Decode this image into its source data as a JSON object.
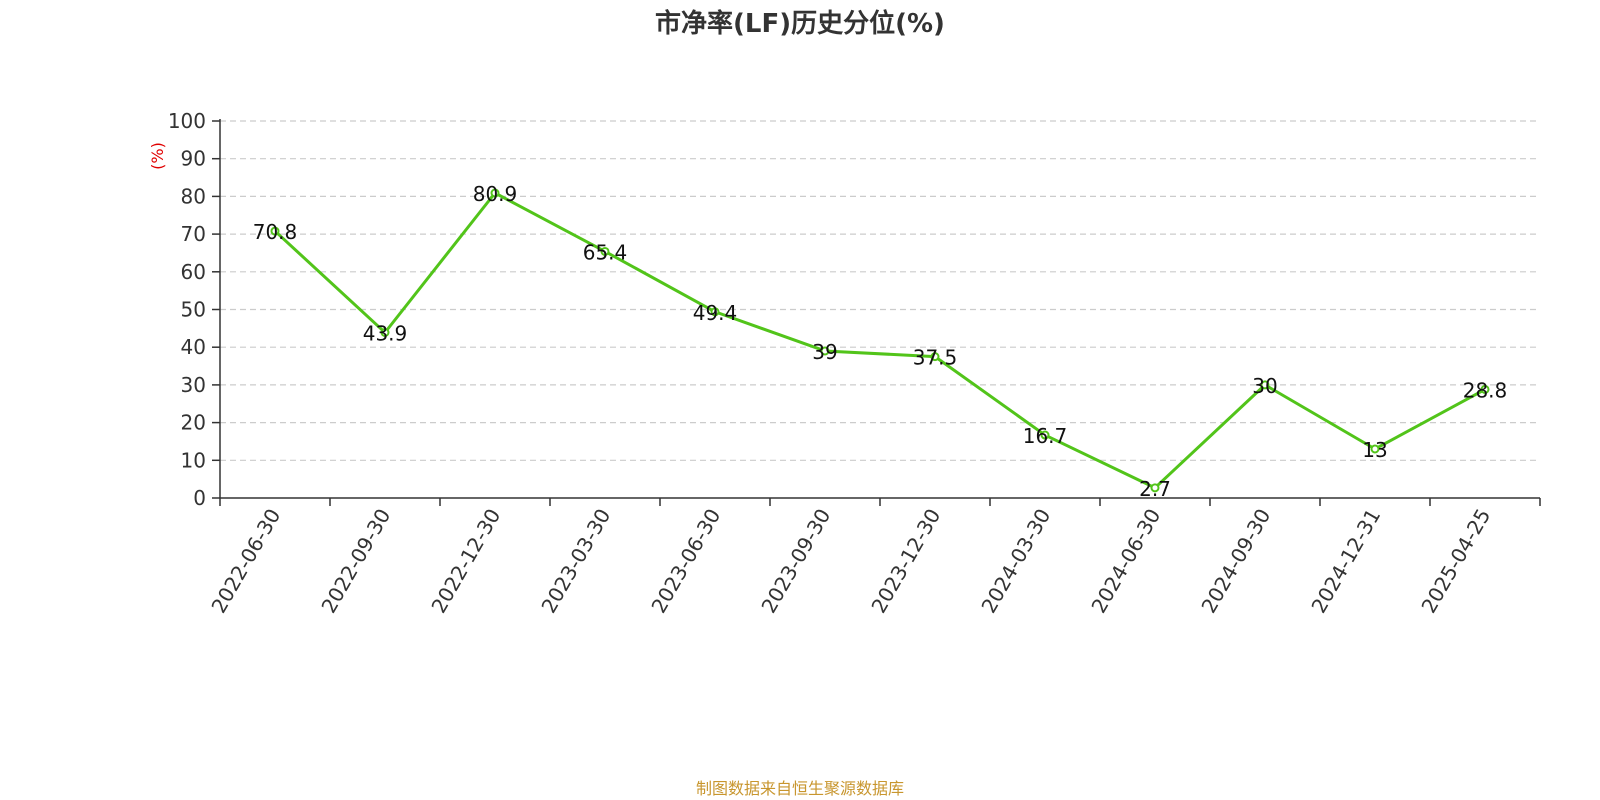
{
  "chart_data": {
    "type": "line",
    "title": "市净率(LF)历史分位(%)",
    "ylabel": "(%)",
    "ylim": [
      0,
      100
    ],
    "y_ticks": [
      "0",
      "10",
      "20",
      "30",
      "40",
      "50",
      "60",
      "70",
      "80",
      "90",
      "100"
    ],
    "grid": true,
    "categories": [
      "2022-06-30",
      "2022-09-30",
      "2022-12-30",
      "2023-03-30",
      "2023-06-30",
      "2023-09-30",
      "2023-12-30",
      "2024-03-30",
      "2024-06-30",
      "2024-09-30",
      "2024-12-31",
      "2025-04-25"
    ],
    "series": [
      {
        "values": [
          70.8,
          43.9,
          80.9,
          65.4,
          49.4,
          39,
          37.5,
          16.7,
          2.7,
          30,
          13,
          28.8
        ],
        "labels": [
          "70.8",
          "43.9",
          "80.9",
          "65.4",
          "49.4",
          "39",
          "37.5",
          "16.7",
          "2.7",
          "30",
          "13",
          "28.8"
        ],
        "color": "#52c41a"
      }
    ],
    "ylabel_color": "#e00000",
    "source_note": "制图数据来自恒生聚源数据库",
    "source_color": "#c8962e"
  }
}
